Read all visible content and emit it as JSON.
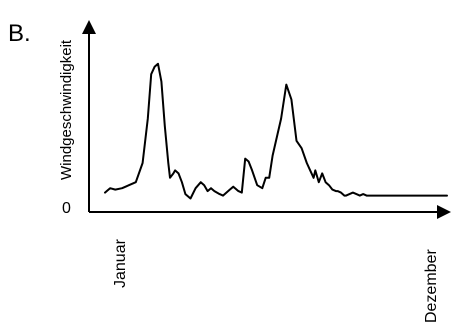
{
  "panel_label": "B.",
  "chart_data": {
    "type": "line",
    "title": "",
    "xlabel": "",
    "ylabel": "Windgeschwindigkeit",
    "x_tick_labels": [
      "Januar",
      "Dezember"
    ],
    "y_tick_labels": [
      "0"
    ],
    "grid": false,
    "legend": "none",
    "ylim": [
      0,
      100
    ],
    "series": [
      {
        "name": "",
        "x": [
          0,
          0.005,
          0.015,
          0.03,
          0.05,
          0.07,
          0.09,
          0.11,
          0.125,
          0.135,
          0.145,
          0.155,
          0.165,
          0.175,
          0.185,
          0.19,
          0.2,
          0.205,
          0.215,
          0.225,
          0.235,
          0.25,
          0.265,
          0.28,
          0.29,
          0.3,
          0.31,
          0.32,
          0.335,
          0.345,
          0.355,
          0.365,
          0.375,
          0.39,
          0.4,
          0.41,
          0.42,
          0.43,
          0.445,
          0.46,
          0.47,
          0.48,
          0.49,
          0.505,
          0.515,
          0.53,
          0.545,
          0.56,
          0.575,
          0.59,
          0.6,
          0.61,
          0.615,
          0.625,
          0.635,
          0.645,
          0.655,
          0.665,
          0.675,
          0.68,
          0.69,
          0.7,
          0.705,
          0.715,
          0.725,
          0.735,
          0.745,
          0.755,
          0.765,
          0.775,
          0.785,
          0.795,
          0.8,
          0.81,
          0.82,
          0.83,
          0.84,
          0.85,
          0.855,
          0.86,
          0.865,
          0.875,
          0.885,
          0.895,
          0.905,
          0.92,
          0.935,
          0.95,
          0.965,
          0.98,
          0.99,
          1
        ],
        "values": [
          5,
          6,
          8,
          7,
          8,
          10,
          12,
          25,
          55,
          85,
          90,
          92,
          80,
          50,
          25,
          15,
          18,
          20,
          18,
          12,
          4,
          1,
          8,
          12,
          10,
          6,
          8,
          6,
          4,
          3,
          5,
          7,
          9,
          6,
          5,
          28,
          26,
          20,
          10,
          8,
          15,
          15,
          30,
          45,
          55,
          78,
          68,
          40,
          35,
          25,
          20,
          15,
          20,
          12,
          18,
          12,
          10,
          7,
          6,
          6,
          5,
          3,
          3,
          4,
          5,
          4,
          3,
          4,
          3,
          3,
          3,
          3,
          3,
          3,
          3,
          3,
          3,
          3,
          3,
          3,
          3,
          3,
          3,
          3,
          3,
          3,
          3,
          3,
          3,
          3,
          3,
          3
        ]
      }
    ]
  }
}
